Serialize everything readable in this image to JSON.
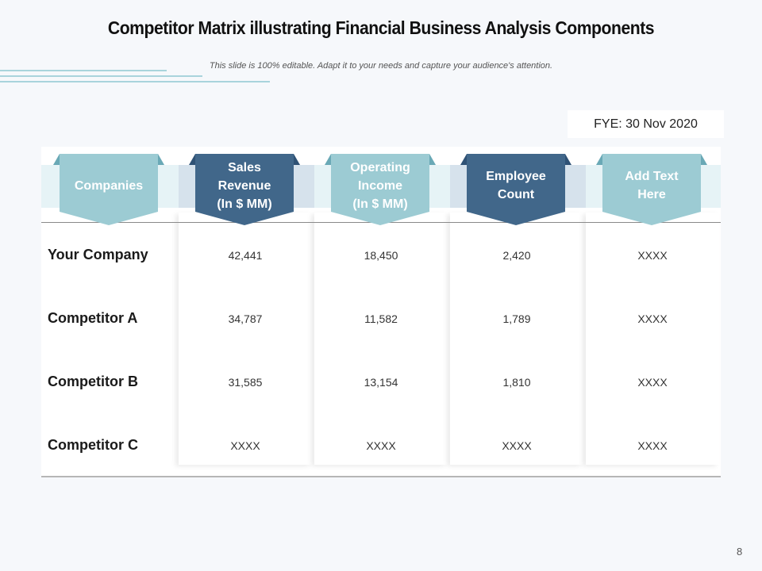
{
  "title": "Competitor Matrix illustrating Financial Business Analysis Components",
  "subtitle": "This slide is 100% editable. Adapt it to your needs and capture your audience's attention.",
  "fye": "FYE: 30 Nov 2020",
  "colors": {
    "dark_blue": "#41678a",
    "light_teal": "#9ccbd3",
    "band_dark": "#d6e2ec",
    "band_light": "#e6f3f6",
    "fold_light": "#6aa9b6",
    "fold_dark": "#2f5275"
  },
  "headers": [
    {
      "label": "Companies",
      "style": "light"
    },
    {
      "label": "Sales\nRevenue\n(In $ MM)",
      "style": "dark"
    },
    {
      "label": "Operating\nIncome\n(In $ MM)",
      "style": "light"
    },
    {
      "label": "Employee\nCount",
      "style": "dark"
    },
    {
      "label": "Add Text\nHere",
      "style": "light"
    }
  ],
  "rows": [
    {
      "name": "Your Company",
      "values": [
        "42,441",
        "18,450",
        "2,420",
        "XXXX"
      ]
    },
    {
      "name": "Competitor A",
      "values": [
        "34,787",
        "11,582",
        "1,789",
        "XXXX"
      ]
    },
    {
      "name": "Competitor B",
      "values": [
        "31,585",
        "13,154",
        "1,810",
        "XXXX"
      ]
    },
    {
      "name": "Competitor C",
      "values": [
        "XXXX",
        "XXXX",
        "XXXX",
        "XXXX"
      ]
    }
  ],
  "page_number": "8"
}
